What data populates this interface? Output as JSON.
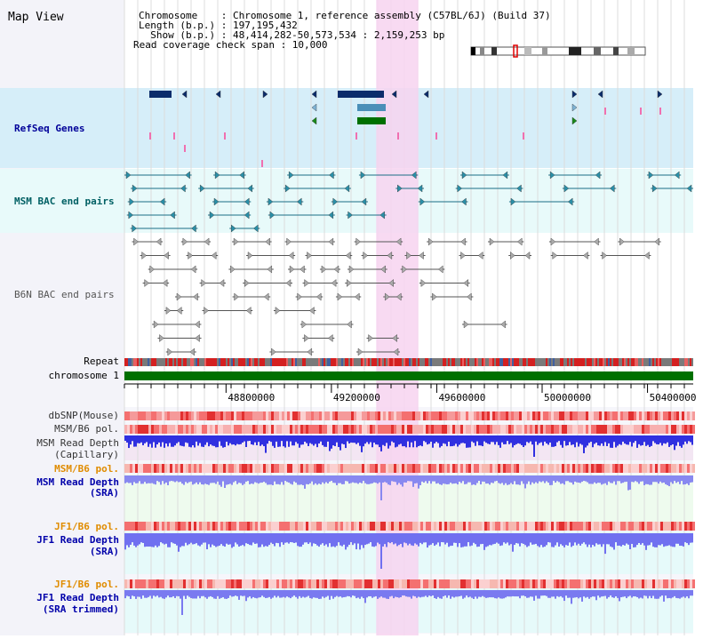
{
  "panel_title": "Map View",
  "header": {
    "lines": [
      "Chromosome    : Chromosome 1, reference assembly (C57BL/6J) (Build 37)",
      "Length (b.p.) : 197,195,432",
      "  Show (b.p.) : 48,414,282-50,573,534 : 2,159,253 bp",
      "Read coverage check span : 10,000"
    ]
  },
  "colors": {
    "refseq_label": "#000099",
    "orange_label": "#e08c00",
    "blue_label": "#0000aa",
    "refseq_bg": "#d6eef9",
    "msm_bac_bg": "#e8fafa",
    "highlight": "#f7d3f0",
    "chrom_bar": "#007000"
  },
  "tracks": [
    {
      "name": "refseq-genes-label",
      "text": "RefSeq Genes",
      "y": 148,
      "color": "#000099",
      "align": "start"
    },
    {
      "name": "msm-bac-label",
      "text": "MSM BAC end pairs",
      "y": 230,
      "color": "#006064",
      "align": "start"
    },
    {
      "name": "b6n-bac-label",
      "text": "B6N BAC end pairs",
      "y": 335,
      "color": "#555555",
      "align": "start"
    },
    {
      "name": "repeat-label",
      "text": "Repeat",
      "y": 410,
      "color": "#000000",
      "align": "end"
    },
    {
      "name": "chromosome-1-label",
      "text": "chromosome 1",
      "y": 426,
      "color": "#000000",
      "align": "end"
    },
    {
      "name": "dbsnp-label",
      "text": "dbSNP(Mouse)",
      "y": 471,
      "color": "#333333",
      "align": "end"
    },
    {
      "name": "msm-b6-pol-label",
      "text": "MSM/B6 pol.",
      "y": 486,
      "color": "#333333",
      "align": "end"
    },
    {
      "name": "msm-read-depth-cap-label",
      "text": "MSM Read Depth",
      "y": 502,
      "color": "#333333",
      "align": "end"
    },
    {
      "name": "msm-read-depth-cap-label-2",
      "text": "(Capillary)",
      "y": 515,
      "color": "#333333",
      "align": "end"
    },
    {
      "name": "msm-b6-pol-label-2",
      "text": "MSM/B6 pol.",
      "y": 531,
      "color": "#e08c00",
      "align": "end"
    },
    {
      "name": "msm-read-depth-sra-label",
      "text": "MSM Read Depth",
      "y": 546,
      "color": "#0000aa",
      "align": "end"
    },
    {
      "name": "msm-read-depth-sra-label-2",
      "text": "(SRA)",
      "y": 558,
      "color": "#0000aa",
      "align": "end"
    },
    {
      "name": "jf1-b6-pol-label",
      "text": "JF1/B6 pol.",
      "y": 596,
      "color": "#e08c00",
      "align": "end"
    },
    {
      "name": "jf1-read-depth-sra-label",
      "text": "JF1 Read Depth",
      "y": 611,
      "color": "#0000aa",
      "align": "end"
    },
    {
      "name": "jf1-read-depth-sra-label-2",
      "text": "(SRA)",
      "y": 624,
      "color": "#0000aa",
      "align": "end"
    },
    {
      "name": "jf1-b6-pol-label-2",
      "text": "JF1/B6 pol.",
      "y": 661,
      "color": "#e08c00",
      "align": "end"
    },
    {
      "name": "jf1-read-depth-trim-label",
      "text": "JF1 Read Depth",
      "y": 676,
      "color": "#0000aa",
      "align": "end"
    },
    {
      "name": "jf1-read-depth-trim-label-2",
      "text": "(SRA trimmed)",
      "y": 689,
      "color": "#0000aa",
      "align": "end"
    }
  ],
  "axis": {
    "range": [
      48414282,
      50573534
    ],
    "ticks": [
      {
        "label": "48800000",
        "value": 48800000
      },
      {
        "label": "49200000",
        "value": 49200000
      },
      {
        "label": "49600000",
        "value": 49600000
      },
      {
        "label": "50000000",
        "value": 50000000
      },
      {
        "label": "50400000",
        "value": 50400000
      }
    ]
  },
  "highlight_region": [
    49370000,
    49530000
  ]
}
